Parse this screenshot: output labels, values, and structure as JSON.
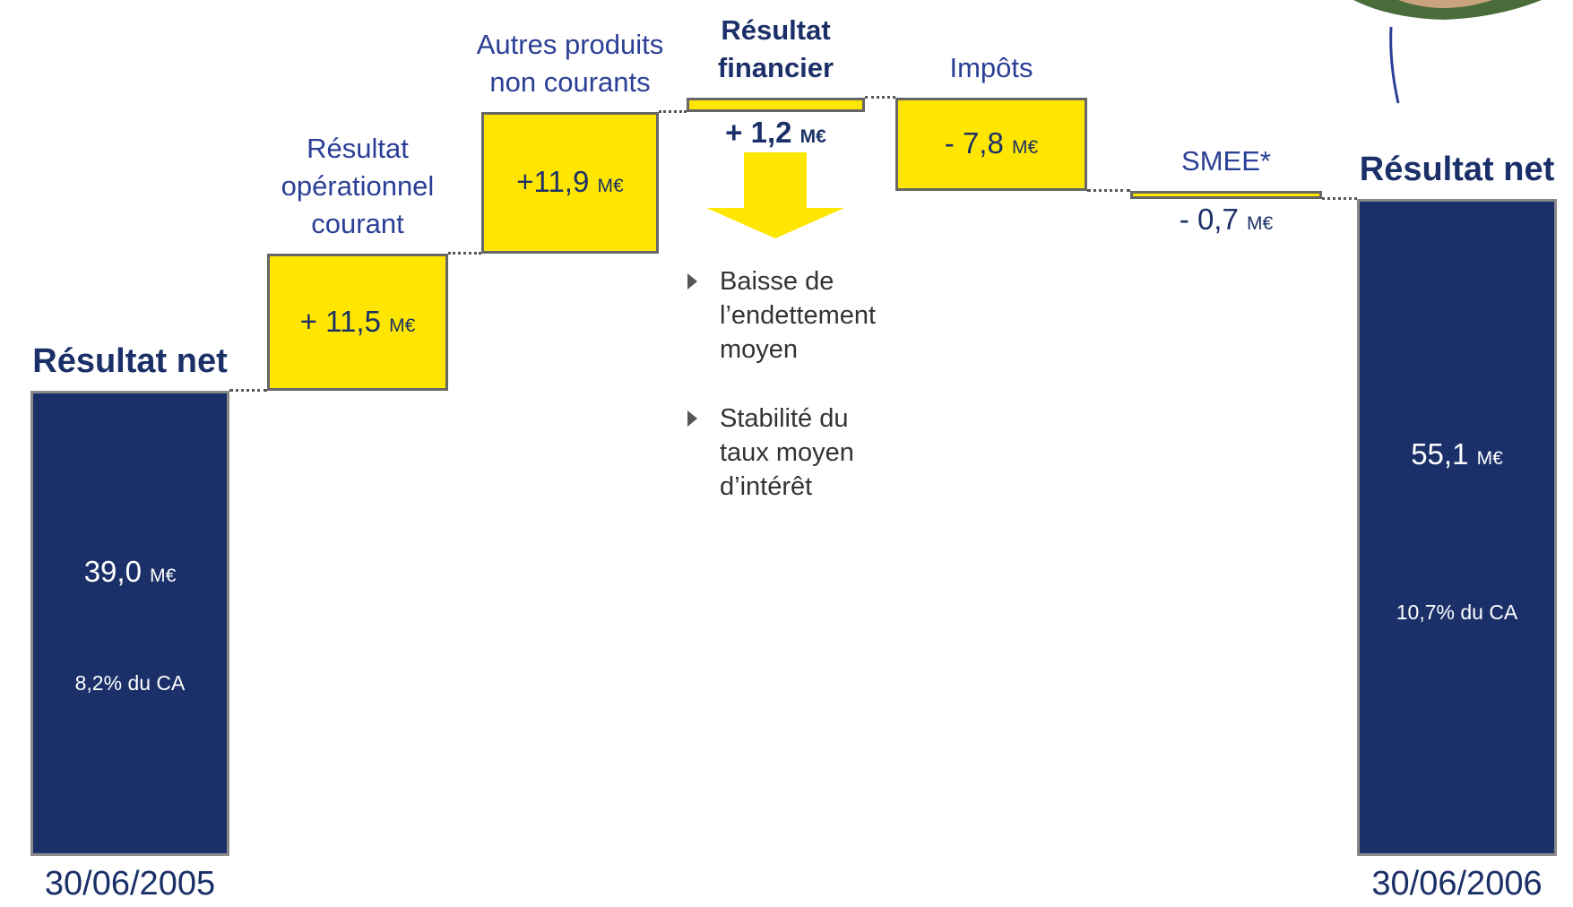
{
  "chart_data": {
    "type": "waterfall",
    "categories": [
      "Résultat net",
      "Résultat opérationnel courant",
      "Autres produits non courants",
      "Résultat financier",
      "Impôts",
      "SMEE*",
      "Résultat net"
    ],
    "measure": [
      "absolute",
      "relative",
      "relative",
      "relative",
      "relative",
      "relative",
      "total"
    ],
    "values": [
      39.0,
      11.5,
      11.9,
      1.2,
      -7.8,
      -0.7,
      55.1
    ],
    "value_labels": [
      "39,0",
      "+ 11,5",
      "+11,9",
      "+ 1,2",
      "- 7,8",
      "- 0,7",
      "55,1"
    ],
    "unit": "M€",
    "total_notes": [
      "8,2% du CA",
      "10,7% du CA"
    ],
    "dates": [
      "30/06/2005",
      "30/06/2006"
    ],
    "comments": [
      "Baisse de l’endettement moyen",
      "Stabilité du taux moyen d’intérêt"
    ],
    "total_color": "#1b3068",
    "delta_color": "#ffe600"
  }
}
